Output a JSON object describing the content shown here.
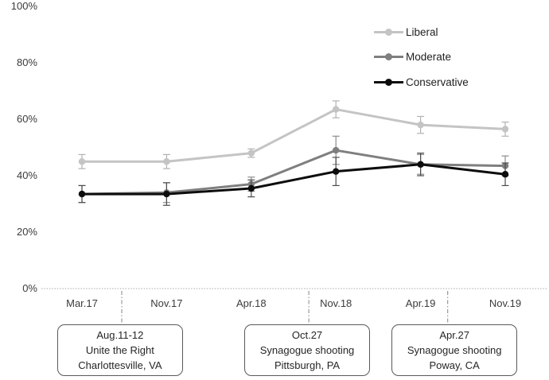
{
  "chart_data": {
    "type": "line",
    "title": "",
    "xlabel": "",
    "ylabel": "",
    "ylim": [
      0,
      100
    ],
    "grid": "none (dotted baseline at 0% only)",
    "legend_position": "top-right",
    "y_tick_labels": [
      "0%",
      "20%",
      "40%",
      "60%",
      "80%",
      "100%"
    ],
    "y_tick_values": [
      0,
      20,
      40,
      60,
      80,
      100
    ],
    "categories": [
      "Mar.17",
      "Nov.17",
      "Apr.18",
      "Nov.18",
      "Apr.19",
      "Nov.19"
    ],
    "series": [
      {
        "name": "Liberal",
        "color": "#c4c4c4",
        "error_color": "#b2b2b2",
        "values": [
          45,
          45,
          48,
          63.5,
          58,
          56.5
        ],
        "errors": [
          2.5,
          2.5,
          1.5,
          3,
          3,
          2.5
        ]
      },
      {
        "name": "Moderate",
        "color": "#7f7f7f",
        "error_color": "#8c8c8c",
        "values": [
          33.5,
          34,
          37,
          49,
          44,
          43.5
        ],
        "errors": [
          3,
          3.5,
          2.5,
          5,
          3.5,
          3.5
        ]
      },
      {
        "name": "Conservative",
        "color": "#0d0d0d",
        "error_color": "#4d4d4d",
        "values": [
          33.5,
          33.5,
          35.5,
          41.5,
          44,
          40.5
        ],
        "errors": [
          3,
          4,
          3,
          5,
          4,
          4
        ]
      }
    ],
    "events": [
      {
        "label_lines": [
          "Aug.11-12",
          "Unite the Right",
          "Charlottesville, VA"
        ],
        "line_pos": 0.47,
        "box_pos": 0.45
      },
      {
        "label_lines": [
          "Oct.27",
          "Synagogue shooting",
          "Pittsburgh, PA"
        ],
        "line_pos": 2.68,
        "box_pos": 2.66
      },
      {
        "label_lines": [
          "Apr.27",
          "Synagogue shooting",
          "Poway, CA"
        ],
        "line_pos": 4.32,
        "box_pos": 4.4
      }
    ]
  }
}
